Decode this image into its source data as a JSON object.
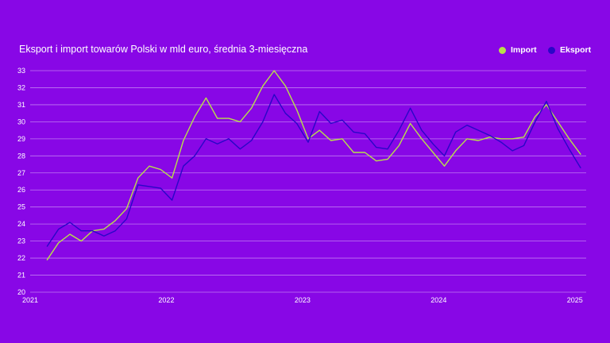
{
  "colors": {
    "background": "#8807e6",
    "import": "#b8e04a",
    "eksport": "#2a06c8",
    "gridline": "#c07af2",
    "text": "#ffffff"
  },
  "chart_data": {
    "type": "line",
    "title": "Eksport i import towarów Polski w mld euro, średnia 3-miesięczna",
    "xlabel": "",
    "ylabel": "",
    "ylim": [
      20,
      33
    ],
    "yticks": [
      "20",
      "21",
      "22",
      "23",
      "24",
      "25",
      "26",
      "27",
      "28",
      "29",
      "30",
      "31",
      "32",
      "33"
    ],
    "xlim": [
      2021.0,
      2025.083
    ],
    "xticks": [
      {
        "value": 2021,
        "label": "2021"
      },
      {
        "value": 2022,
        "label": "2022"
      },
      {
        "value": 2023,
        "label": "2023"
      },
      {
        "value": 2024,
        "label": "2024"
      },
      {
        "value": 2025,
        "label": "2025"
      }
    ],
    "legend": {
      "position": "top-right"
    },
    "grid": true,
    "x_start": 2021.125,
    "x_step": 0.08333,
    "series": [
      {
        "name": "Import",
        "color_key": "import",
        "values": [
          21.9,
          22.9,
          23.4,
          23.0,
          23.6,
          23.7,
          24.2,
          24.9,
          26.7,
          27.4,
          27.2,
          26.7,
          28.9,
          30.3,
          31.4,
          30.2,
          30.2,
          30.0,
          30.8,
          32.1,
          33.0,
          32.1,
          30.7,
          29.0,
          29.5,
          28.9,
          29.0,
          28.2,
          28.2,
          27.7,
          27.8,
          28.6,
          29.9,
          29.0,
          28.2,
          27.4,
          28.3,
          29.0,
          28.9,
          29.1,
          29.0,
          29.0,
          29.1,
          30.3,
          31.0,
          30.0,
          29.0,
          28.1
        ]
      },
      {
        "name": "Eksport",
        "color_key": "eksport",
        "values": [
          22.7,
          23.7,
          24.1,
          23.6,
          23.6,
          23.3,
          23.6,
          24.3,
          26.3,
          26.2,
          26.1,
          25.4,
          27.4,
          28.0,
          29.0,
          28.7,
          29.0,
          28.4,
          28.9,
          30.0,
          31.6,
          30.5,
          29.9,
          28.8,
          30.6,
          29.9,
          30.1,
          29.4,
          29.3,
          28.5,
          28.4,
          29.5,
          30.8,
          29.5,
          28.7,
          28.0,
          29.4,
          29.8,
          29.5,
          29.2,
          28.8,
          28.3,
          28.6,
          30.0,
          31.2,
          29.6,
          28.4,
          27.3
        ]
      }
    ]
  }
}
